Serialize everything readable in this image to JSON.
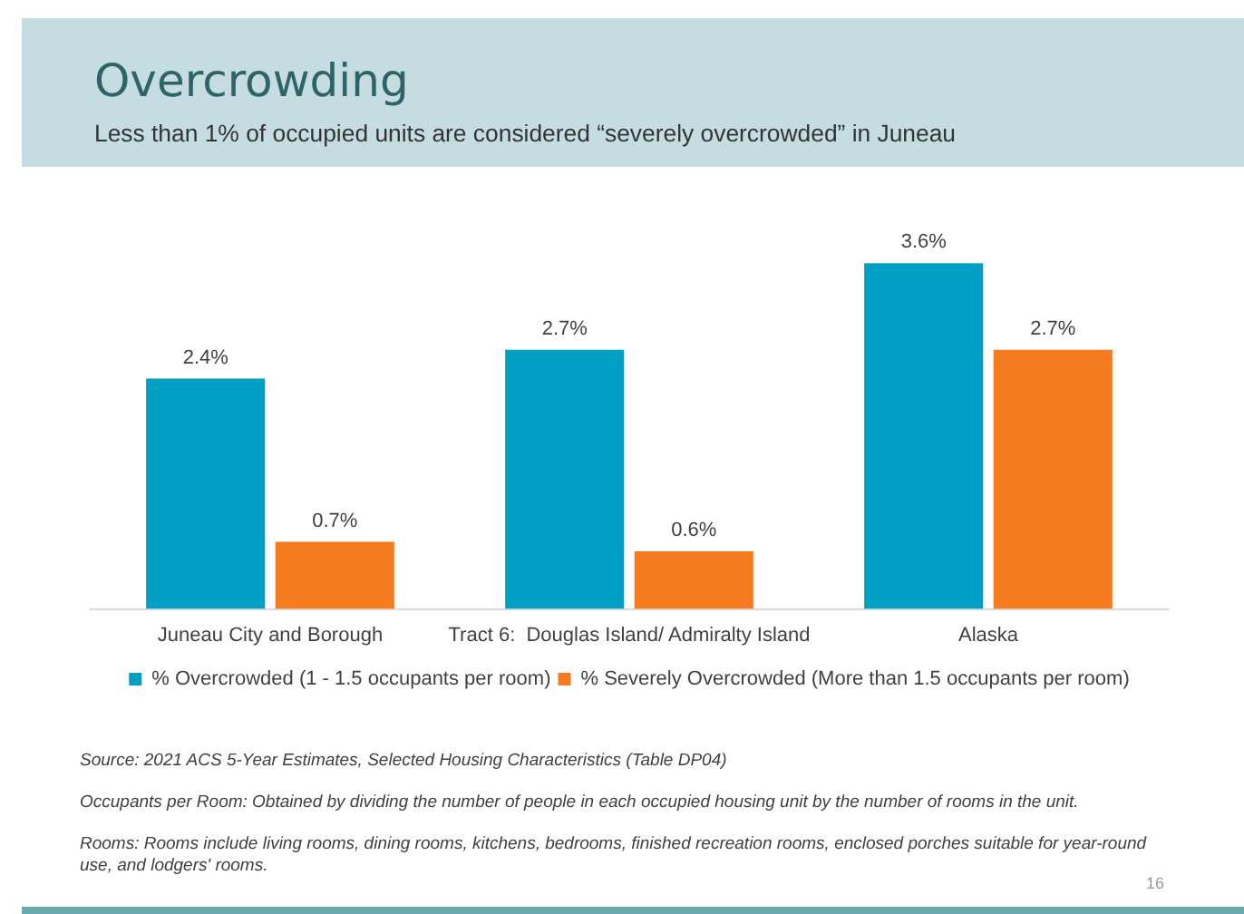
{
  "chart_data": {
    "type": "bar",
    "title": "Overcrowding",
    "subtitle": "Less than 1% of occupied units are considered “severely overcrowded” in Juneau",
    "categories": [
      "Juneau City and Borough",
      "Tract 6:  Douglas Island/ Admiralty Island",
      "Alaska"
    ],
    "series": [
      {
        "name": "% Overcrowded (1 - 1.5 occupants per room)",
        "color": "#009fc4",
        "values": [
          2.4,
          2.7,
          3.6
        ],
        "value_labels": [
          "2.4%",
          "2.7%",
          "3.6%"
        ]
      },
      {
        "name": "% Severely Overcrowded (More than 1.5 occupants per room)",
        "color": "#f47b20",
        "values": [
          0.7,
          0.6,
          2.7
        ],
        "value_labels": [
          "0.7%",
          "0.6%",
          "2.7%"
        ]
      }
    ],
    "legend": "bottom",
    "grid": false,
    "annotations": [
      "Source: 2021 ACS 5-Year Estimates, Selected Housing Characteristics (Table DP04)",
      "Occupants per Room: Obtained by dividing the number of people in each occupied housing unit by the number of rooms in the unit.",
      "Rooms: Rooms include living rooms, dining rooms, kitchens, bedrooms, finished recreation rooms, enclosed porches suitable for year-round use, and lodgers' rooms.",
      "16"
    ]
  }
}
